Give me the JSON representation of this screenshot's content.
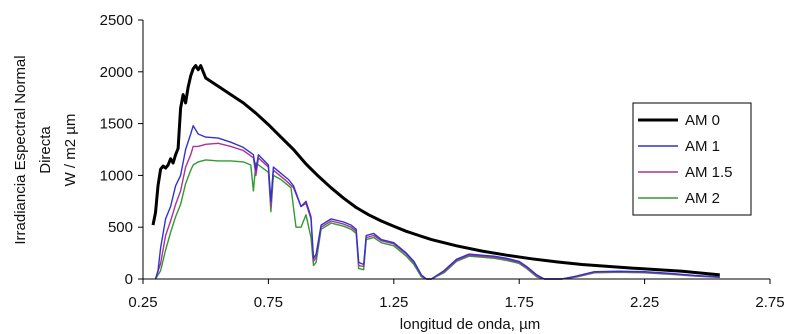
{
  "chart_data": {
    "type": "line",
    "title": "",
    "xlabel": "longitud de onda, µm",
    "ylabel": [
      "Irradiancia Espectral Normal",
      "Directa",
      "W / m2 µm"
    ],
    "xlim": [
      0.25,
      2.75
    ],
    "ylim": [
      0,
      2500
    ],
    "xticks": [
      "0.25",
      "0.75",
      "1.25",
      "1.75",
      "2.25",
      "2.75"
    ],
    "yticks": [
      "0",
      "500",
      "1000",
      "1500",
      "2000",
      "2500"
    ],
    "grid": false,
    "legend_position": "right",
    "series": [
      {
        "name": "AM 0",
        "color": "#000000",
        "points": [
          [
            0.29,
            520
          ],
          [
            0.3,
            640
          ],
          [
            0.31,
            900
          ],
          [
            0.32,
            1060
          ],
          [
            0.33,
            1090
          ],
          [
            0.34,
            1070
          ],
          [
            0.35,
            1100
          ],
          [
            0.36,
            1160
          ],
          [
            0.37,
            1120
          ],
          [
            0.38,
            1200
          ],
          [
            0.39,
            1260
          ],
          [
            0.4,
            1650
          ],
          [
            0.41,
            1780
          ],
          [
            0.42,
            1700
          ],
          [
            0.43,
            1850
          ],
          [
            0.44,
            1960
          ],
          [
            0.45,
            2030
          ],
          [
            0.46,
            2060
          ],
          [
            0.47,
            2020
          ],
          [
            0.48,
            2060
          ],
          [
            0.5,
            1940
          ],
          [
            0.55,
            1860
          ],
          [
            0.6,
            1780
          ],
          [
            0.65,
            1700
          ],
          [
            0.7,
            1600
          ],
          [
            0.75,
            1490
          ],
          [
            0.8,
            1370
          ],
          [
            0.85,
            1250
          ],
          [
            0.9,
            1110
          ],
          [
            0.95,
            990
          ],
          [
            1.0,
            880
          ],
          [
            1.05,
            780
          ],
          [
            1.1,
            690
          ],
          [
            1.15,
            620
          ],
          [
            1.2,
            560
          ],
          [
            1.25,
            510
          ],
          [
            1.3,
            460
          ],
          [
            1.35,
            420
          ],
          [
            1.4,
            380
          ],
          [
            1.5,
            320
          ],
          [
            1.6,
            270
          ],
          [
            1.7,
            230
          ],
          [
            1.8,
            195
          ],
          [
            1.9,
            165
          ],
          [
            2.0,
            140
          ],
          [
            2.2,
            105
          ],
          [
            2.4,
            75
          ],
          [
            2.55,
            40
          ]
        ]
      },
      {
        "name": "AM 1",
        "color": "#3333cc",
        "points": [
          [
            0.3,
            0
          ],
          [
            0.31,
            80
          ],
          [
            0.32,
            300
          ],
          [
            0.34,
            580
          ],
          [
            0.36,
            700
          ],
          [
            0.38,
            900
          ],
          [
            0.4,
            1000
          ],
          [
            0.42,
            1250
          ],
          [
            0.44,
            1400
          ],
          [
            0.45,
            1480
          ],
          [
            0.47,
            1400
          ],
          [
            0.5,
            1370
          ],
          [
            0.55,
            1360
          ],
          [
            0.6,
            1320
          ],
          [
            0.65,
            1270
          ],
          [
            0.69,
            1200
          ],
          [
            0.7,
            1050
          ],
          [
            0.71,
            1200
          ],
          [
            0.75,
            1100
          ],
          [
            0.76,
            750
          ],
          [
            0.77,
            1080
          ],
          [
            0.8,
            1020
          ],
          [
            0.82,
            980
          ],
          [
            0.83,
            960
          ],
          [
            0.85,
            900
          ],
          [
            0.88,
            700
          ],
          [
            0.9,
            750
          ],
          [
            0.92,
            600
          ],
          [
            0.93,
            200
          ],
          [
            0.94,
            240
          ],
          [
            0.96,
            520
          ],
          [
            1.0,
            580
          ],
          [
            1.05,
            550
          ],
          [
            1.08,
            520
          ],
          [
            1.1,
            480
          ],
          [
            1.11,
            160
          ],
          [
            1.13,
            140
          ],
          [
            1.14,
            420
          ],
          [
            1.17,
            440
          ],
          [
            1.2,
            380
          ],
          [
            1.25,
            350
          ],
          [
            1.3,
            250
          ],
          [
            1.33,
            170
          ],
          [
            1.36,
            40
          ],
          [
            1.38,
            0
          ],
          [
            1.4,
            0
          ],
          [
            1.45,
            80
          ],
          [
            1.5,
            190
          ],
          [
            1.55,
            240
          ],
          [
            1.6,
            230
          ],
          [
            1.65,
            220
          ],
          [
            1.7,
            200
          ],
          [
            1.75,
            170
          ],
          [
            1.78,
            120
          ],
          [
            1.82,
            40
          ],
          [
            1.85,
            0
          ],
          [
            1.92,
            0
          ],
          [
            1.98,
            30
          ],
          [
            2.05,
            70
          ],
          [
            2.15,
            75
          ],
          [
            2.25,
            70
          ],
          [
            2.35,
            55
          ],
          [
            2.45,
            35
          ],
          [
            2.55,
            20
          ]
        ]
      },
      {
        "name": "AM 1.5",
        "color": "#aa3399",
        "points": [
          [
            0.3,
            0
          ],
          [
            0.32,
            150
          ],
          [
            0.34,
            420
          ],
          [
            0.36,
            560
          ],
          [
            0.38,
            720
          ],
          [
            0.4,
            850
          ],
          [
            0.42,
            1080
          ],
          [
            0.44,
            1200
          ],
          [
            0.45,
            1280
          ],
          [
            0.47,
            1280
          ],
          [
            0.5,
            1300
          ],
          [
            0.55,
            1310
          ],
          [
            0.6,
            1280
          ],
          [
            0.65,
            1240
          ],
          [
            0.69,
            1170
          ],
          [
            0.7,
            1000
          ],
          [
            0.71,
            1170
          ],
          [
            0.75,
            1080
          ],
          [
            0.76,
            700
          ],
          [
            0.77,
            1050
          ],
          [
            0.8,
            990
          ],
          [
            0.82,
            950
          ],
          [
            0.85,
            880
          ],
          [
            0.88,
            700
          ],
          [
            0.9,
            730
          ],
          [
            0.92,
            580
          ],
          [
            0.93,
            170
          ],
          [
            0.94,
            210
          ],
          [
            0.96,
            500
          ],
          [
            1.0,
            560
          ],
          [
            1.05,
            530
          ],
          [
            1.08,
            500
          ],
          [
            1.1,
            460
          ],
          [
            1.11,
            130
          ],
          [
            1.13,
            120
          ],
          [
            1.14,
            400
          ],
          [
            1.17,
            420
          ],
          [
            1.2,
            370
          ],
          [
            1.25,
            340
          ],
          [
            1.3,
            240
          ],
          [
            1.33,
            160
          ],
          [
            1.36,
            30
          ],
          [
            1.38,
            0
          ],
          [
            1.4,
            0
          ],
          [
            1.45,
            70
          ],
          [
            1.5,
            180
          ],
          [
            1.55,
            230
          ],
          [
            1.6,
            220
          ],
          [
            1.65,
            210
          ],
          [
            1.7,
            190
          ],
          [
            1.75,
            160
          ],
          [
            1.78,
            110
          ],
          [
            1.82,
            30
          ],
          [
            1.85,
            0
          ],
          [
            1.92,
            0
          ],
          [
            1.98,
            25
          ],
          [
            2.05,
            65
          ],
          [
            2.15,
            70
          ],
          [
            2.25,
            65
          ],
          [
            2.35,
            50
          ],
          [
            2.45,
            30
          ],
          [
            2.55,
            18
          ]
        ]
      },
      {
        "name": "AM 2",
        "color": "#339933",
        "points": [
          [
            0.3,
            0
          ],
          [
            0.32,
            80
          ],
          [
            0.34,
            280
          ],
          [
            0.36,
            450
          ],
          [
            0.38,
            600
          ],
          [
            0.4,
            720
          ],
          [
            0.42,
            920
          ],
          [
            0.44,
            1050
          ],
          [
            0.45,
            1100
          ],
          [
            0.47,
            1130
          ],
          [
            0.5,
            1150
          ],
          [
            0.55,
            1140
          ],
          [
            0.6,
            1140
          ],
          [
            0.65,
            1130
          ],
          [
            0.68,
            1100
          ],
          [
            0.69,
            850
          ],
          [
            0.7,
            1120
          ],
          [
            0.75,
            1030
          ],
          [
            0.76,
            650
          ],
          [
            0.77,
            1000
          ],
          [
            0.8,
            960
          ],
          [
            0.82,
            920
          ],
          [
            0.84,
            880
          ],
          [
            0.86,
            500
          ],
          [
            0.88,
            500
          ],
          [
            0.9,
            620
          ],
          [
            0.92,
            400
          ],
          [
            0.93,
            130
          ],
          [
            0.94,
            160
          ],
          [
            0.96,
            480
          ],
          [
            1.0,
            540
          ],
          [
            1.05,
            510
          ],
          [
            1.08,
            480
          ],
          [
            1.1,
            440
          ],
          [
            1.11,
            100
          ],
          [
            1.13,
            90
          ],
          [
            1.14,
            380
          ],
          [
            1.17,
            400
          ],
          [
            1.2,
            350
          ],
          [
            1.25,
            320
          ],
          [
            1.3,
            220
          ],
          [
            1.33,
            140
          ],
          [
            1.36,
            20
          ],
          [
            1.38,
            0
          ],
          [
            1.4,
            0
          ],
          [
            1.45,
            60
          ],
          [
            1.5,
            170
          ],
          [
            1.55,
            220
          ],
          [
            1.6,
            210
          ],
          [
            1.65,
            200
          ],
          [
            1.7,
            180
          ],
          [
            1.75,
            150
          ],
          [
            1.78,
            100
          ],
          [
            1.82,
            20
          ],
          [
            1.85,
            0
          ],
          [
            1.92,
            0
          ],
          [
            1.98,
            20
          ],
          [
            2.05,
            60
          ],
          [
            2.15,
            65
          ],
          [
            2.25,
            60
          ],
          [
            2.35,
            45
          ],
          [
            2.45,
            28
          ],
          [
            2.55,
            15
          ]
        ]
      }
    ]
  }
}
